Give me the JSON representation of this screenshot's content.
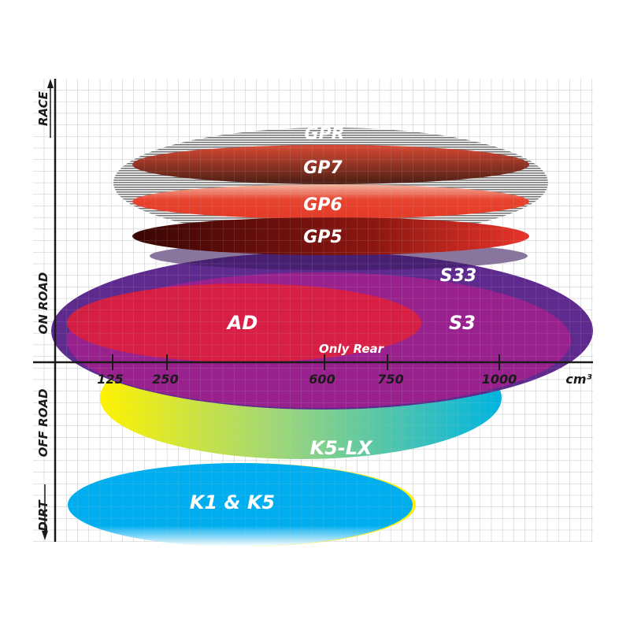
{
  "axis": {
    "left_labels": [
      "RACE",
      "ON ROAD",
      "OFF ROAD",
      "DIRT"
    ],
    "x_ticks": [
      "125",
      "250",
      "600",
      "750",
      "1000"
    ],
    "x_unit": "cm³"
  },
  "products": {
    "gpr": "GPR",
    "gp7": "GP7",
    "gp6": "GP6",
    "gp5": "GP5",
    "s33": "S33",
    "ad": "AD",
    "s3": "S3",
    "only_rear": "Only Rear",
    "k5lx": "K5-LX",
    "k1k5": "K1 & K5"
  },
  "colors": {
    "gpr": "#8c8c8c",
    "gp7": "#b5402e",
    "gp6": "#e8432e",
    "gp5": "#6a0f0a",
    "s33": "#5e2a8e",
    "s3": "#a3208e",
    "ad": "#dc1e3e",
    "k5lx": "#00b4e0",
    "k1k5": "#00aeef"
  }
}
